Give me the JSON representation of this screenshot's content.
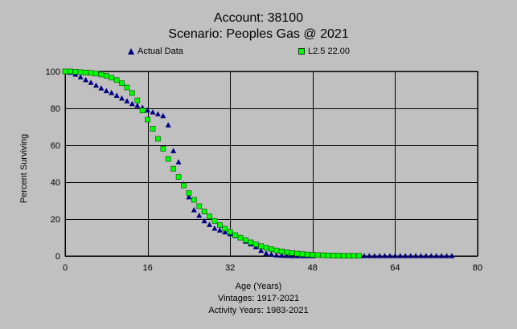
{
  "titles": {
    "line1": "Account: 38100",
    "line2": "Scenario: Peoples Gas @ 2021"
  },
  "legend": {
    "actual": "Actual Data",
    "fitted": "L2.5 22.00"
  },
  "footer": {
    "xlabel": "Age (Years)",
    "vintages": "Vintages: 1917-2021",
    "activity": "Activity Years: 1983-2021"
  },
  "colors": {
    "background": "#c0c0c0",
    "actual": "#000080",
    "fitted": "#00ff00"
  },
  "chart_data": {
    "type": "scatter",
    "xlabel": "Age (Years)",
    "ylabel": "Percent Surviving",
    "xlim": [
      0,
      80
    ],
    "ylim": [
      0,
      100
    ],
    "xticks": [
      0,
      16,
      32,
      48,
      64,
      80
    ],
    "yticks": [
      0,
      20,
      40,
      60,
      80,
      100
    ],
    "grid": true,
    "legend_position": "top",
    "series": [
      {
        "name": "Actual Data",
        "marker": "triangle",
        "color": "#000080",
        "points": [
          [
            0,
            100
          ],
          [
            1,
            99.5
          ],
          [
            2,
            98.5
          ],
          [
            3,
            97
          ],
          [
            4,
            95.5
          ],
          [
            5,
            94
          ],
          [
            6,
            92.5
          ],
          [
            7,
            91
          ],
          [
            8,
            89.5
          ],
          [
            9,
            88.5
          ],
          [
            10,
            87
          ],
          [
            11,
            85.5
          ],
          [
            12,
            84
          ],
          [
            13,
            82.5
          ],
          [
            14,
            81.5
          ],
          [
            15,
            80.5
          ],
          [
            16,
            79
          ],
          [
            17,
            78
          ],
          [
            18,
            77
          ],
          [
            19,
            76
          ],
          [
            20,
            71
          ],
          [
            21,
            57
          ],
          [
            22,
            51
          ],
          [
            23,
            39
          ],
          [
            24,
            32
          ],
          [
            25,
            25
          ],
          [
            26,
            22
          ],
          [
            27,
            19
          ],
          [
            28,
            17
          ],
          [
            29,
            15
          ],
          [
            30,
            14
          ],
          [
            31,
            13
          ],
          [
            32,
            12
          ],
          [
            33,
            11
          ],
          [
            34,
            10
          ],
          [
            35,
            8
          ],
          [
            36,
            6.5
          ],
          [
            37,
            5
          ],
          [
            38,
            3
          ],
          [
            39,
            1.5
          ],
          [
            40,
            1
          ],
          [
            41,
            0.5
          ],
          [
            42,
            0.3
          ],
          [
            43,
            0.2
          ],
          [
            44,
            0.1
          ],
          [
            45,
            0.1
          ],
          [
            46,
            0.1
          ],
          [
            47,
            0.1
          ],
          [
            48,
            0.1
          ],
          [
            57,
            0.1
          ],
          [
            58,
            0.1
          ],
          [
            59,
            0.1
          ],
          [
            60,
            0.1
          ],
          [
            61,
            0.1
          ],
          [
            62,
            0.1
          ],
          [
            63,
            0.1
          ],
          [
            64,
            0.1
          ],
          [
            65,
            0.1
          ],
          [
            66,
            0.1
          ],
          [
            67,
            0.1
          ],
          [
            68,
            0.1
          ],
          [
            69,
            0.1
          ],
          [
            70,
            0.1
          ],
          [
            71,
            0.1
          ],
          [
            72,
            0.1
          ],
          [
            73,
            0.1
          ],
          [
            74,
            0.1
          ],
          [
            75,
            0.1
          ]
        ]
      },
      {
        "name": "L2.5 22.00",
        "marker": "square",
        "color": "#00ff00",
        "points": [
          [
            0,
            100
          ],
          [
            1,
            100
          ],
          [
            2,
            99.8
          ],
          [
            3,
            99.6
          ],
          [
            4,
            99.4
          ],
          [
            5,
            99.2
          ],
          [
            6,
            98.8
          ],
          [
            7,
            98.3
          ],
          [
            8,
            97.6
          ],
          [
            9,
            96.6
          ],
          [
            10,
            95.3
          ],
          [
            11,
            93.6
          ],
          [
            12,
            91.3
          ],
          [
            13,
            88.3
          ],
          [
            14,
            84.3
          ],
          [
            15,
            78.8
          ],
          [
            16,
            73.9
          ],
          [
            17,
            68.9
          ],
          [
            18,
            63.5
          ],
          [
            19,
            58.1
          ],
          [
            20,
            52.6
          ],
          [
            21,
            47.3
          ],
          [
            22,
            42.8
          ],
          [
            23,
            38.2
          ],
          [
            24,
            34.1
          ],
          [
            25,
            30.4
          ],
          [
            26,
            27
          ],
          [
            27,
            24.1
          ],
          [
            28,
            21.4
          ],
          [
            29,
            19
          ],
          [
            30,
            16.8
          ],
          [
            31,
            14.8
          ],
          [
            32,
            13
          ],
          [
            33,
            11.3
          ],
          [
            34,
            9.9
          ],
          [
            35,
            8.6
          ],
          [
            36,
            7.4
          ],
          [
            37,
            6.3
          ],
          [
            38,
            5.3
          ],
          [
            39,
            4.4
          ],
          [
            40,
            3.7
          ],
          [
            41,
            3
          ],
          [
            42,
            2.5
          ],
          [
            43,
            2
          ],
          [
            44,
            1.6
          ],
          [
            45,
            1.3
          ],
          [
            46,
            1
          ],
          [
            47,
            0.8
          ],
          [
            48,
            0.6
          ],
          [
            49,
            0.5
          ],
          [
            50,
            0.4
          ],
          [
            51,
            0.3
          ],
          [
            52,
            0.2
          ],
          [
            53,
            0.2
          ],
          [
            54,
            0.1
          ],
          [
            55,
            0.1
          ],
          [
            56,
            0.1
          ],
          [
            57,
            0.1
          ]
        ]
      }
    ]
  }
}
